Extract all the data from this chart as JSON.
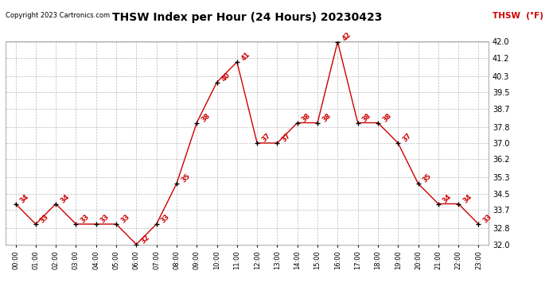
{
  "title": "THSW Index per Hour (24 Hours) 20230423",
  "copyright": "Copyright 2023 Cartronics.com",
  "legend_label": "THSW  (°F)",
  "hours": [
    0,
    1,
    2,
    3,
    4,
    5,
    6,
    7,
    8,
    9,
    10,
    11,
    12,
    13,
    14,
    15,
    16,
    17,
    18,
    19,
    20,
    21,
    22,
    23
  ],
  "values": [
    34,
    33,
    34,
    33,
    33,
    33,
    32,
    33,
    35,
    38,
    40,
    41,
    37,
    37,
    38,
    38,
    42,
    38,
    38,
    37,
    35,
    34,
    34,
    33
  ],
  "line_color": "#cc0000",
  "marker_color": "#000000",
  "annotation_color": "#cc0000",
  "title_color": "#000000",
  "copyright_color": "#000000",
  "legend_color": "#cc0000",
  "bg_color": "#ffffff",
  "grid_color": "#bbbbbb",
  "ylim_min": 32.0,
  "ylim_max": 42.0,
  "yticks": [
    32.0,
    32.8,
    33.7,
    34.5,
    35.3,
    36.2,
    37.0,
    37.8,
    38.7,
    39.5,
    40.3,
    41.2,
    42.0
  ]
}
